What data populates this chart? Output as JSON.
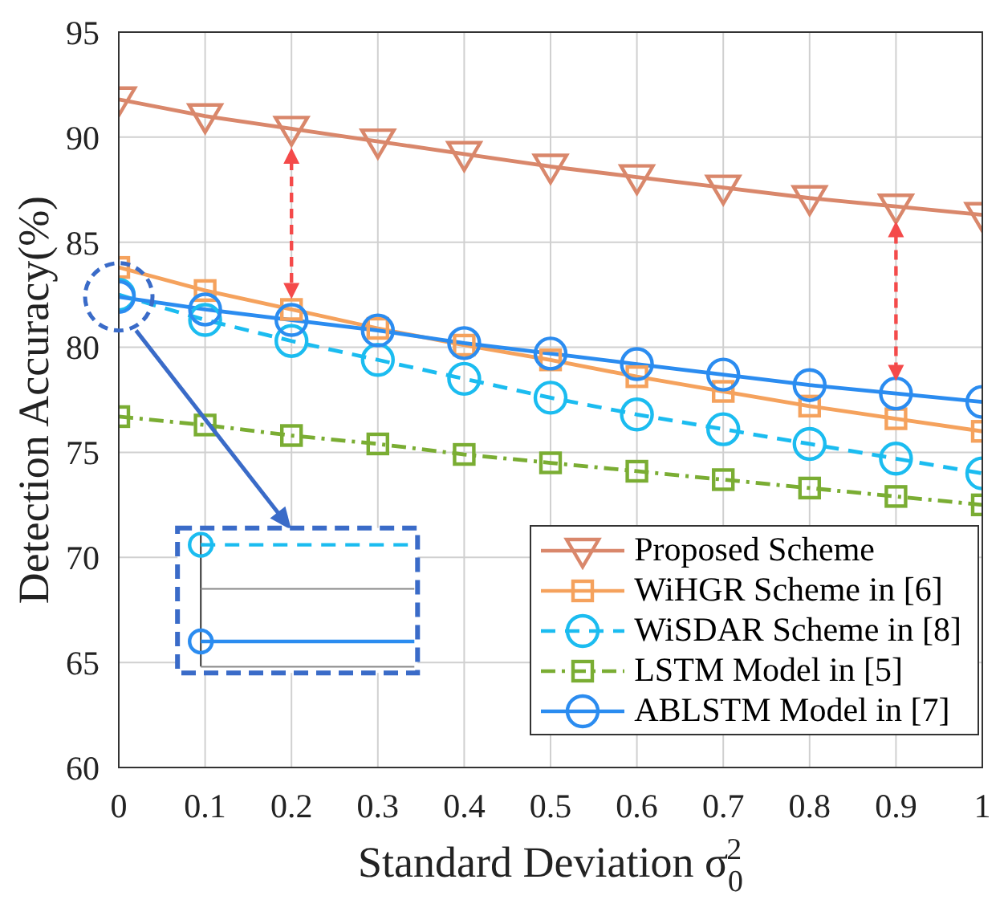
{
  "chart_data": {
    "type": "line",
    "xlabel": "Standard Deviation σ$_{0}$$^{2}$",
    "ylabel": "Detection Accuracy(%)",
    "x": [
      0,
      0.1,
      0.2,
      0.3,
      0.4,
      0.5,
      0.6,
      0.7,
      0.8,
      0.9,
      1
    ],
    "series": [
      {
        "name": "Proposed Scheme",
        "color": "#d9876b",
        "marker": "triangle",
        "line_style": "solid",
        "values": [
          91.8,
          91.0,
          90.4,
          89.8,
          89.2,
          88.6,
          88.1,
          87.6,
          87.1,
          86.7,
          86.3
        ]
      },
      {
        "name": "WiHGR Scheme in [6]",
        "color": "#f5a25d",
        "marker": "square",
        "line_style": "solid",
        "values": [
          83.8,
          82.7,
          81.8,
          80.9,
          80.1,
          79.4,
          78.6,
          77.9,
          77.2,
          76.6,
          76.0
        ]
      },
      {
        "name": "WiSDAR Scheme in [8]",
        "color": "#1bbcf0",
        "marker": "circle",
        "line_style": "dashed",
        "values": [
          82.5,
          81.3,
          80.3,
          79.4,
          78.5,
          77.6,
          76.8,
          76.1,
          75.4,
          74.7,
          74.0
        ]
      },
      {
        "name": "LSTM Model in [5]",
        "color": "#7aad33",
        "marker": "square",
        "line_style": "dashdot",
        "values": [
          76.7,
          76.3,
          75.8,
          75.4,
          74.9,
          74.5,
          74.1,
          73.7,
          73.3,
          72.9,
          72.5
        ]
      },
      {
        "name": "ABLSTM Model in [7]",
        "color": "#2b8cf0",
        "marker": "circle",
        "line_style": "solid",
        "values": [
          82.4,
          81.8,
          81.3,
          80.8,
          80.2,
          79.7,
          79.2,
          78.7,
          78.2,
          77.8,
          77.4
        ]
      }
    ],
    "xlim": [
      0,
      1
    ],
    "xticks": [
      0,
      0.1,
      0.2,
      0.3,
      0.4,
      0.5,
      0.6,
      0.7,
      0.8,
      0.9,
      1
    ],
    "ylim": [
      60,
      95
    ],
    "yticks": [
      60,
      65,
      70,
      75,
      80,
      85,
      90,
      95
    ],
    "grid": true,
    "legend": "bottom right"
  }
}
